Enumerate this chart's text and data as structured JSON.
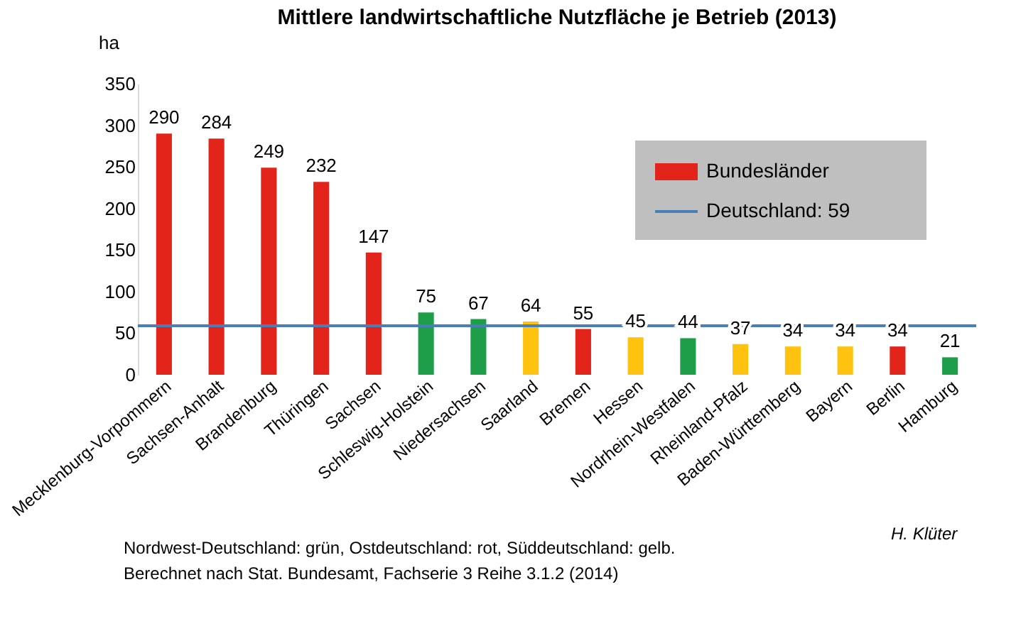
{
  "chart_data": {
    "type": "bar",
    "title": "Mittlere landwirtschaftliche Nutzfläche je Betrieb (2013)",
    "ylabel": "ha",
    "categories": [
      "Mecklenburg-Vorpommern",
      "Sachsen-Anhalt",
      "Brandenburg",
      "Thüringen",
      "Sachsen",
      "Schleswig-Holstein",
      "Niedersachsen",
      "Saarland",
      "Bremen",
      "Hessen",
      "Nordrhein-Westfalen",
      "Rheinland-Pfalz",
      "Baden-Württemberg",
      "Bayern",
      "Berlin",
      "Hamburg"
    ],
    "series": [
      {
        "name": "Bundesländer",
        "color": "#e3241b",
        "values": [
          290,
          284,
          249,
          232,
          147,
          75,
          67,
          64,
          55,
          45,
          44,
          37,
          34,
          34,
          34,
          21
        ],
        "colors": [
          "#e3241b",
          "#e3241b",
          "#e3241b",
          "#e3241b",
          "#e3241b",
          "#1e9e48",
          "#1e9e48",
          "#ffc20e",
          "#e3241b",
          "#ffc20e",
          "#1e9e48",
          "#ffc20e",
          "#ffc20e",
          "#ffc20e",
          "#e3241b",
          "#1e9e48"
        ]
      }
    ],
    "ref_lines": [
      {
        "axis": "y",
        "value": 59,
        "label": "Deutschland: 59",
        "color": "#4a7ebb"
      }
    ],
    "ylim": [
      0,
      350
    ],
    "yticks": [
      0,
      50,
      100,
      150,
      200,
      250,
      300,
      350
    ],
    "grid": false,
    "data_labels": true,
    "legend": "top right",
    "annotations": [
      "H. Klüter",
      "Nordwest-Deutschland: grün, Ostdeutschland: rot, Süddeutschland: gelb.",
      "Berechnet nach Stat. Bundesamt, Fachserie 3 Reihe  3.1.2 (2014)"
    ]
  }
}
